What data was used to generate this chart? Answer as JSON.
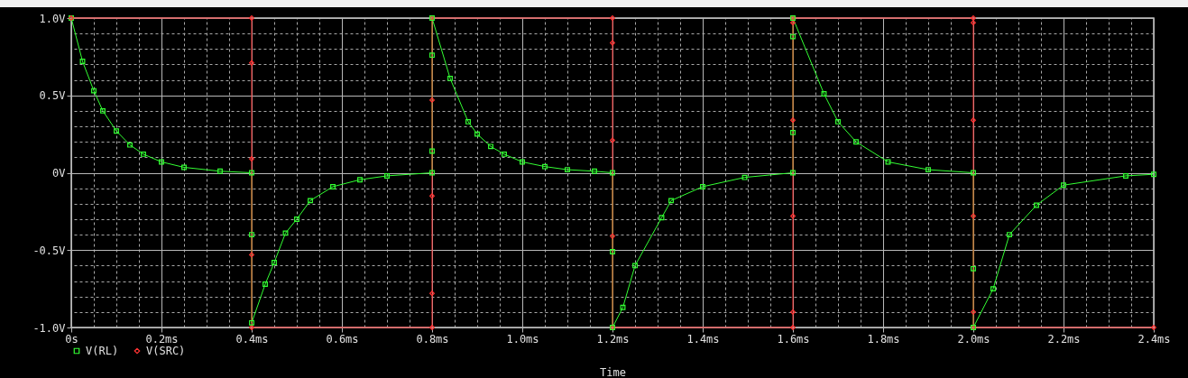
{
  "chart_data": {
    "type": "line",
    "xlabel": "Time",
    "legend": "bottom left",
    "grid": true,
    "xlim": [
      0,
      2.4
    ],
    "ylim": [
      -1,
      1
    ],
    "xticks": [
      {
        "value": 0,
        "label": "0s"
      },
      {
        "value": 0.2,
        "label": "0.2ms"
      },
      {
        "value": 0.4,
        "label": "0.4ms"
      },
      {
        "value": 0.6,
        "label": "0.6ms"
      },
      {
        "value": 0.8,
        "label": "0.8ms"
      },
      {
        "value": 1.0,
        "label": "1.0ms"
      },
      {
        "value": 1.2,
        "label": "1.2ms"
      },
      {
        "value": 1.4,
        "label": "1.4ms"
      },
      {
        "value": 1.6,
        "label": "1.6ms"
      },
      {
        "value": 1.8,
        "label": "1.8ms"
      },
      {
        "value": 2.0,
        "label": "2.0ms"
      },
      {
        "value": 2.2,
        "label": "2.2ms"
      },
      {
        "value": 2.4,
        "label": "2.4ms"
      }
    ],
    "yticks": [
      {
        "value": -1,
        "label": "-1.0V"
      },
      {
        "value": -0.5,
        "label": "-0.5V"
      },
      {
        "value": 0,
        "label": "0V"
      },
      {
        "value": 0.5,
        "label": "0.5V"
      },
      {
        "value": 1,
        "label": "1.0V"
      }
    ],
    "series": [
      {
        "name": "V(RL)",
        "color": "#33ff33",
        "marker": "square",
        "x": [
          0,
          0.025,
          0.05,
          0.07,
          0.1,
          0.13,
          0.16,
          0.2,
          0.25,
          0.33,
          0.4,
          0.4,
          0.4,
          0.43,
          0.45,
          0.475,
          0.5,
          0.53,
          0.58,
          0.64,
          0.7,
          0.8,
          0.8,
          0.8,
          0.8,
          0.84,
          0.88,
          0.9,
          0.93,
          0.96,
          1.0,
          1.05,
          1.1,
          1.16,
          1.2,
          1.2,
          1.2,
          1.223,
          1.25,
          1.309,
          1.33,
          1.4,
          1.493,
          1.6,
          1.6,
          1.6,
          1.6,
          1.669,
          1.7,
          1.74,
          1.811,
          1.9,
          2.0,
          2.0,
          2.0,
          2.044,
          2.08,
          2.14,
          2.2,
          2.338,
          2.4
        ],
        "values": [
          1,
          0.72,
          0.53,
          0.4,
          0.27,
          0.18,
          0.12,
          0.07,
          0.035,
          0.01,
          0,
          -0.4,
          -0.97,
          -0.72,
          -0.58,
          -0.39,
          -0.3,
          -0.18,
          -0.09,
          -0.045,
          -0.02,
          0,
          0.14,
          0.76,
          1,
          0.61,
          0.33,
          0.25,
          0.17,
          0.12,
          0.07,
          0.04,
          0.02,
          0.01,
          0,
          -0.51,
          -1,
          -0.87,
          -0.6,
          -0.29,
          -0.18,
          -0.09,
          -0.03,
          0,
          0.26,
          0.88,
          1,
          0.51,
          0.33,
          0.2,
          0.07,
          0.02,
          0,
          -0.62,
          -1,
          -0.75,
          -0.4,
          -0.21,
          -0.08,
          -0.02,
          -0.01
        ]
      },
      {
        "name": "V(SRC)",
        "color": "#ff3333",
        "marker": "diamond",
        "x": [
          0,
          0.4,
          0.4,
          0.4,
          0.4,
          0.4,
          0.8,
          0.8,
          0.8,
          0.8,
          0.8,
          1.2,
          1.2,
          1.2,
          1.2,
          1.2,
          1.6,
          1.6,
          1.6,
          1.6,
          1.6,
          1.6,
          2.0,
          2.0,
          2.0,
          2.0,
          2.0,
          2.0,
          2.4
        ],
        "values": [
          1,
          1,
          0.71,
          0.09,
          -0.53,
          -1,
          -1,
          -0.78,
          -0.15,
          0.47,
          1,
          1,
          0.84,
          0.21,
          -0.41,
          -1,
          -1,
          -0.9,
          -0.28,
          0.34,
          0.97,
          1,
          1,
          0.97,
          0.34,
          -0.28,
          -0.9,
          -1,
          -1
        ]
      }
    ]
  }
}
